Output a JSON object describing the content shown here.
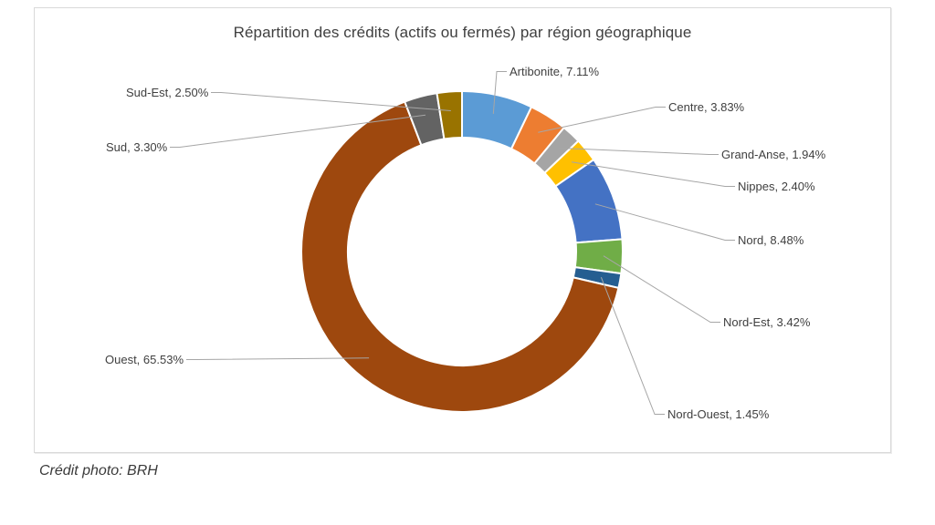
{
  "page": {
    "background": "#ffffff"
  },
  "chart_panel": {
    "border_color": "#d9d9d9",
    "background": "#ffffff"
  },
  "footer": {
    "credit": "Crédit photo: BRH"
  },
  "chart_data": {
    "type": "pie",
    "subtype": "doughnut",
    "title": "Répartition des crédits (actifs ou fermés) par région géographique",
    "unit": "%",
    "direction": "clockwise",
    "start_angle_deg": 0,
    "hole_ratio": 0.7,
    "legend": "none",
    "data_labels": "category-and-percent-outside-with-leader-lines",
    "categories": [
      "Artibonite",
      "Centre",
      "Grand-Anse",
      "Nippes",
      "Nord",
      "Nord-Est",
      "Nord-Ouest",
      "Ouest",
      "Sud",
      "Sud-Est"
    ],
    "values": [
      7.11,
      3.83,
      1.94,
      2.4,
      8.48,
      3.42,
      1.45,
      65.53,
      3.3,
      2.5
    ],
    "colors": [
      "#5B9BD5",
      "#ED7D31",
      "#A5A5A5",
      "#FFC000",
      "#4472C4",
      "#70AD47",
      "#255E91",
      "#9E480E",
      "#636363",
      "#997300"
    ],
    "labels": [
      "Artibonite, 7.11%",
      "Centre, 3.83%",
      "Grand-Anse, 1.94%",
      "Nippes, 2.40%",
      "Nord, 8.48%",
      "Nord-Est, 3.42%",
      "Nord-Ouest, 1.45%",
      "Ouest, 65.53%",
      "Sud, 3.30%",
      "Sud-Est, 2.50%"
    ],
    "slice_border_color": "#FFFFFF",
    "leader_line_color": "#A6A6A6",
    "label_color": "#404040",
    "title_color": "#404040"
  }
}
